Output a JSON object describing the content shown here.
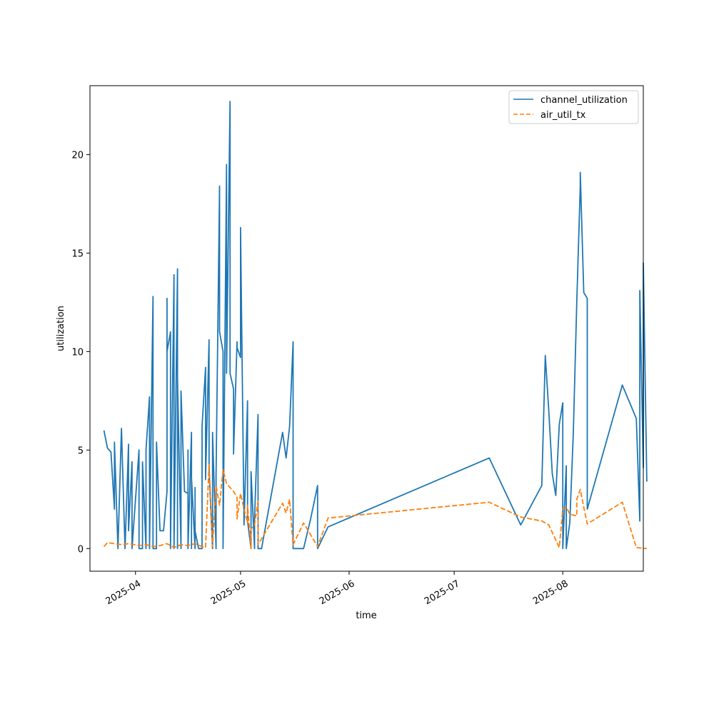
{
  "chart_data": {
    "type": "line",
    "title": "",
    "xlabel": "time",
    "ylabel": "utilization",
    "x_type": "date",
    "xlim": [
      "2025-03-19",
      "2025-08-24"
    ],
    "ylim": [
      -1.15,
      23.5
    ],
    "grid": false,
    "legend_position": "top-right",
    "x_ticks": [
      {
        "value": "2025-04-01",
        "label": "2025-04"
      },
      {
        "value": "2025-05-01",
        "label": "2025-05"
      },
      {
        "value": "2025-06-01",
        "label": "2025-06"
      },
      {
        "value": "2025-07-01",
        "label": "2025-07"
      },
      {
        "value": "2025-08-01",
        "label": "2025-08"
      }
    ],
    "y_ticks": [
      0,
      5,
      10,
      15,
      20
    ],
    "series": [
      {
        "name": "channel_utilization",
        "color": "#1f77b4",
        "style": "solid",
        "points": [
          [
            "2025-03-23",
            6.0
          ],
          [
            "2025-03-24",
            5.1
          ],
          [
            "2025-03-25",
            4.9
          ],
          [
            "2025-03-26",
            2.0
          ],
          [
            "2025-03-26",
            5.4
          ],
          [
            "2025-03-27",
            0.0
          ],
          [
            "2025-03-28",
            6.1
          ],
          [
            "2025-03-29",
            0.0
          ],
          [
            "2025-03-30",
            5.3
          ],
          [
            "2025-03-30",
            0.9
          ],
          [
            "2025-03-31",
            4.4
          ],
          [
            "2025-03-31",
            0.0
          ],
          [
            "2025-04-02",
            5.0
          ],
          [
            "2025-04-02",
            0.0
          ],
          [
            "2025-04-03",
            0.0
          ],
          [
            "2025-04-03",
            4.4
          ],
          [
            "2025-04-04",
            0.0
          ],
          [
            "2025-04-04",
            5.0
          ],
          [
            "2025-04-05",
            7.7
          ],
          [
            "2025-04-05",
            0.0
          ],
          [
            "2025-04-06",
            12.8
          ],
          [
            "2025-04-06",
            0.0
          ],
          [
            "2025-04-07",
            0.0
          ],
          [
            "2025-04-07",
            5.4
          ],
          [
            "2025-04-08",
            0.9
          ],
          [
            "2025-04-09",
            0.9
          ],
          [
            "2025-04-10",
            2.9
          ],
          [
            "2025-04-10",
            12.7
          ],
          [
            "2025-04-10",
            10.0
          ],
          [
            "2025-04-11",
            11.0
          ],
          [
            "2025-04-11",
            0.0
          ],
          [
            "2025-04-12",
            13.9
          ],
          [
            "2025-04-12",
            0.0
          ],
          [
            "2025-04-13",
            14.2
          ],
          [
            "2025-04-13",
            0.0
          ],
          [
            "2025-04-13",
            8.7
          ],
          [
            "2025-04-14",
            0.0
          ],
          [
            "2025-04-14",
            8.0
          ],
          [
            "2025-04-15",
            2.9
          ],
          [
            "2025-04-16",
            2.8
          ],
          [
            "2025-04-16",
            5.0
          ],
          [
            "2025-04-16",
            0.0
          ],
          [
            "2025-04-17",
            5.9
          ],
          [
            "2025-04-17",
            0.0
          ],
          [
            "2025-04-17",
            3.6
          ],
          [
            "2025-04-18",
            0.0
          ],
          [
            "2025-04-18",
            3.1
          ],
          [
            "2025-04-18",
            0.9
          ],
          [
            "2025-04-19",
            0.0
          ],
          [
            "2025-04-20",
            0.0
          ],
          [
            "2025-04-20",
            6.2
          ],
          [
            "2025-04-21",
            9.2
          ],
          [
            "2025-04-21",
            3.5
          ],
          [
            "2025-04-22",
            10.6
          ],
          [
            "2025-04-22",
            4.0
          ],
          [
            "2025-04-23",
            0.0
          ],
          [
            "2025-04-23",
            5.9
          ],
          [
            "2025-04-24",
            0.0
          ],
          [
            "2025-04-24",
            3.7
          ],
          [
            "2025-04-25",
            18.4
          ],
          [
            "2025-04-25",
            11.0
          ],
          [
            "2025-04-26",
            10.0
          ],
          [
            "2025-04-26",
            0.0
          ],
          [
            "2025-04-27",
            19.5
          ],
          [
            "2025-04-27",
            8.9
          ],
          [
            "2025-04-28",
            22.7
          ],
          [
            "2025-04-28",
            8.9
          ],
          [
            "2025-04-29",
            8.1
          ],
          [
            "2025-04-29",
            4.8
          ],
          [
            "2025-04-30",
            10.5
          ],
          [
            "2025-04-30",
            10.2
          ],
          [
            "2025-05-01",
            9.7
          ],
          [
            "2025-05-01",
            16.3
          ],
          [
            "2025-05-02",
            1.2
          ],
          [
            "2025-05-03",
            7.5
          ],
          [
            "2025-05-03",
            1.4
          ],
          [
            "2025-05-04",
            0.0
          ],
          [
            "2025-05-04",
            3.9
          ],
          [
            "2025-05-05",
            0.0
          ],
          [
            "2025-05-05",
            1.5
          ],
          [
            "2025-05-06",
            6.8
          ],
          [
            "2025-05-06",
            0.0
          ],
          [
            "2025-05-07",
            0.0
          ],
          [
            "2025-05-13",
            5.9
          ],
          [
            "2025-05-14",
            4.6
          ],
          [
            "2025-05-15",
            6.2
          ],
          [
            "2025-05-16",
            10.5
          ],
          [
            "2025-05-16",
            0.0
          ],
          [
            "2025-05-19",
            0.0
          ],
          [
            "2025-05-21",
            1.5
          ],
          [
            "2025-05-23",
            3.2
          ],
          [
            "2025-05-23",
            0.0
          ],
          [
            "2025-05-26",
            1.1
          ],
          [
            "2025-07-11",
            4.6
          ],
          [
            "2025-07-20",
            1.2
          ],
          [
            "2025-07-26",
            3.2
          ],
          [
            "2025-07-27",
            9.8
          ],
          [
            "2025-07-28",
            7.0
          ],
          [
            "2025-07-29",
            3.8
          ],
          [
            "2025-07-30",
            2.7
          ],
          [
            "2025-07-31",
            6.3
          ],
          [
            "2025-08-01",
            7.4
          ],
          [
            "2025-08-01",
            0.0
          ],
          [
            "2025-08-02",
            4.2
          ],
          [
            "2025-08-02",
            0.0
          ],
          [
            "2025-08-03",
            1.3
          ],
          [
            "2025-08-04",
            5.8
          ],
          [
            "2025-08-05",
            12.5
          ],
          [
            "2025-08-05",
            12.5
          ],
          [
            "2025-08-06",
            18.4
          ],
          [
            "2025-08-06",
            19.1
          ],
          [
            "2025-08-07",
            13.0
          ],
          [
            "2025-08-08",
            12.7
          ],
          [
            "2025-08-08",
            2.0
          ],
          [
            "2025-08-18",
            8.3
          ],
          [
            "2025-08-22",
            6.6
          ],
          [
            "2025-08-23",
            1.4
          ],
          [
            "2025-08-23",
            13.1
          ],
          [
            "2025-08-24",
            4.1
          ],
          [
            "2025-08-24",
            14.5
          ],
          [
            "2025-08-24",
            14.5
          ],
          [
            "2025-08-25",
            3.4
          ]
        ]
      },
      {
        "name": "air_util_tx",
        "color": "#ff7f0e",
        "style": "dashed",
        "points": [
          [
            "2025-03-23",
            0.1
          ],
          [
            "2025-03-24",
            0.3
          ],
          [
            "2025-03-26",
            0.25
          ],
          [
            "2025-03-28",
            0.2
          ],
          [
            "2025-03-30",
            0.25
          ],
          [
            "2025-04-02",
            0.15
          ],
          [
            "2025-04-04",
            0.2
          ],
          [
            "2025-04-06",
            0.1
          ],
          [
            "2025-04-08",
            0.15
          ],
          [
            "2025-04-10",
            0.25
          ],
          [
            "2025-04-12",
            0.05
          ],
          [
            "2025-04-14",
            0.2
          ],
          [
            "2025-04-16",
            0.15
          ],
          [
            "2025-04-18",
            0.25
          ],
          [
            "2025-04-20",
            0.1
          ],
          [
            "2025-04-21",
            0.05
          ],
          [
            "2025-04-22",
            4.3
          ],
          [
            "2025-04-23",
            0.1
          ],
          [
            "2025-04-24",
            3.2
          ],
          [
            "2025-04-25",
            2.2
          ],
          [
            "2025-04-26",
            4.0
          ],
          [
            "2025-04-27",
            3.3
          ],
          [
            "2025-04-29",
            2.9
          ],
          [
            "2025-04-30",
            2.6
          ],
          [
            "2025-04-30",
            1.5
          ],
          [
            "2025-05-01",
            2.8
          ],
          [
            "2025-05-02",
            2.0
          ],
          [
            "2025-05-03",
            1.3
          ],
          [
            "2025-05-03",
            2.2
          ],
          [
            "2025-05-04",
            0.0
          ],
          [
            "2025-05-04",
            1.0
          ],
          [
            "2025-05-05",
            1.2
          ],
          [
            "2025-05-06",
            2.4
          ],
          [
            "2025-05-06",
            0.2
          ],
          [
            "2025-05-13",
            2.3
          ],
          [
            "2025-05-14",
            1.8
          ],
          [
            "2025-05-15",
            2.5
          ],
          [
            "2025-05-16",
            0.2
          ],
          [
            "2025-05-19",
            1.3
          ],
          [
            "2025-05-23",
            0.1
          ],
          [
            "2025-05-26",
            1.55
          ],
          [
            "2025-07-11",
            2.35
          ],
          [
            "2025-07-20",
            1.6
          ],
          [
            "2025-07-26",
            1.4
          ],
          [
            "2025-07-28",
            1.2
          ],
          [
            "2025-07-31",
            0.05
          ],
          [
            "2025-08-01",
            2.0
          ],
          [
            "2025-08-02",
            2.1
          ],
          [
            "2025-08-03",
            1.75
          ],
          [
            "2025-08-05",
            1.65
          ],
          [
            "2025-08-05",
            2.5
          ],
          [
            "2025-08-06",
            3.0
          ],
          [
            "2025-08-07",
            2.1
          ],
          [
            "2025-08-08",
            1.25
          ],
          [
            "2025-08-18",
            2.35
          ],
          [
            "2025-08-22",
            0.05
          ],
          [
            "2025-08-25",
            0.0
          ]
        ]
      }
    ]
  }
}
